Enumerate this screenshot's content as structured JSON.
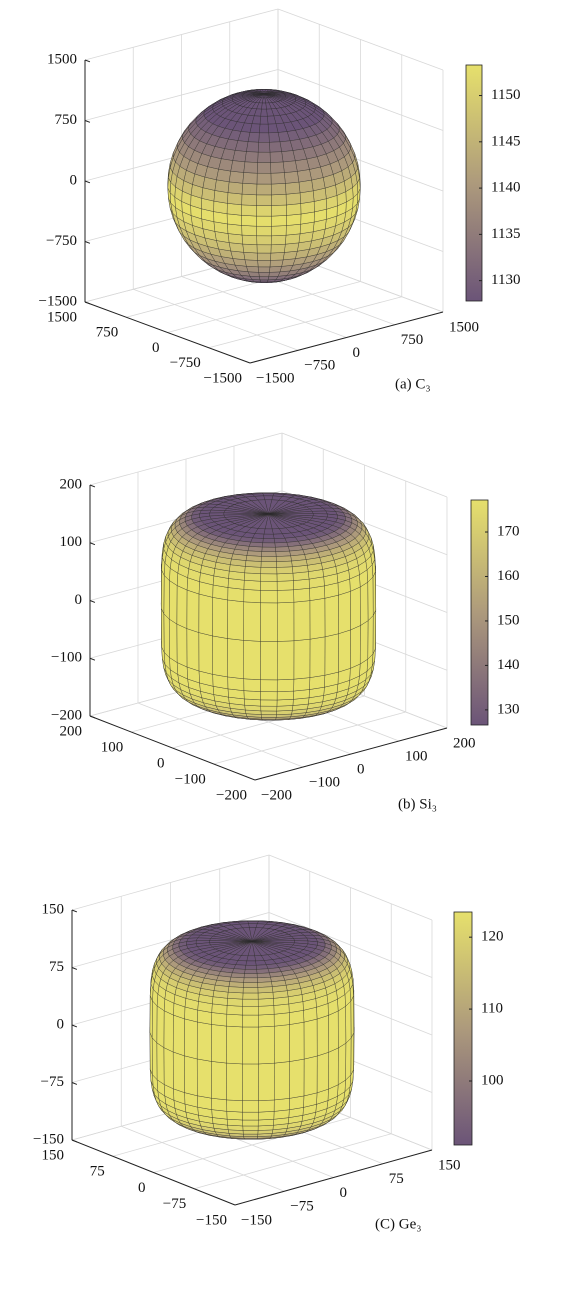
{
  "chart_data": [
    {
      "type": "surface3d",
      "caption": "(a) C₃",
      "xlim": [
        -1500,
        1500
      ],
      "xticks": [
        {
          "value": -1500,
          "label": "−1500"
        },
        {
          "value": -750,
          "label": "−750"
        },
        0,
        750,
        1500
      ],
      "ylim": [
        -1500,
        1500
      ],
      "yticks": [
        {
          "value": -1500,
          "label": "−1500"
        },
        {
          "value": -750,
          "label": "−750"
        },
        0,
        750,
        1500
      ],
      "zlim": [
        -1500,
        1500
      ],
      "zticks": [
        {
          "value": -1500,
          "label": "−1500"
        },
        {
          "value": -750,
          "label": "−750"
        },
        0,
        750,
        1500
      ],
      "clim": [
        1127.8,
        1153.3
      ],
      "cticks": [
        1130,
        1135,
        1140,
        1145,
        1150
      ],
      "colormap": [
        "#6b5478",
        "#ad9a7c",
        "#e6e06c"
      ],
      "grid": true
    },
    {
      "type": "surface3d",
      "caption": "(b) Si₃",
      "xlim": [
        -200,
        200
      ],
      "xticks": [
        {
          "value": -200,
          "label": "−200"
        },
        {
          "value": -100,
          "label": "−100"
        },
        0,
        100,
        200
      ],
      "ylim": [
        -200,
        200
      ],
      "yticks": [
        {
          "value": -200,
          "label": "−200"
        },
        {
          "value": -100,
          "label": "−100"
        },
        0,
        100,
        200
      ],
      "zlim": [
        -200,
        200
      ],
      "zticks": [
        {
          "value": -200,
          "label": "−200"
        },
        {
          "value": -100,
          "label": "−100"
        },
        0,
        100,
        200
      ],
      "clim": [
        126.6,
        177.2
      ],
      "cticks": [
        130,
        140,
        150,
        160,
        170
      ],
      "colormap": [
        "#6b5478",
        "#ad9a7c",
        "#e6e06c"
      ],
      "grid": true
    },
    {
      "type": "surface3d",
      "caption": "(C) Ge₃",
      "xlim": [
        -150,
        150
      ],
      "xticks": [
        {
          "value": -150,
          "label": "−150"
        },
        {
          "value": -75,
          "label": "−75"
        },
        0,
        75,
        150
      ],
      "ylim": [
        -150,
        150
      ],
      "yticks": [
        {
          "value": -150,
          "label": "−150"
        },
        {
          "value": -75,
          "label": "−75"
        },
        0,
        75,
        150
      ],
      "zlim": [
        -150,
        150
      ],
      "zticks": [
        {
          "value": -150,
          "label": "−150"
        },
        {
          "value": -75,
          "label": "−75"
        },
        0,
        75,
        150
      ],
      "clim": [
        91.1,
        123.5
      ],
      "cticks": [
        100,
        110,
        120
      ],
      "colormap": [
        "#6b5478",
        "#ad9a7c",
        "#e6e06c"
      ],
      "grid": true
    }
  ]
}
